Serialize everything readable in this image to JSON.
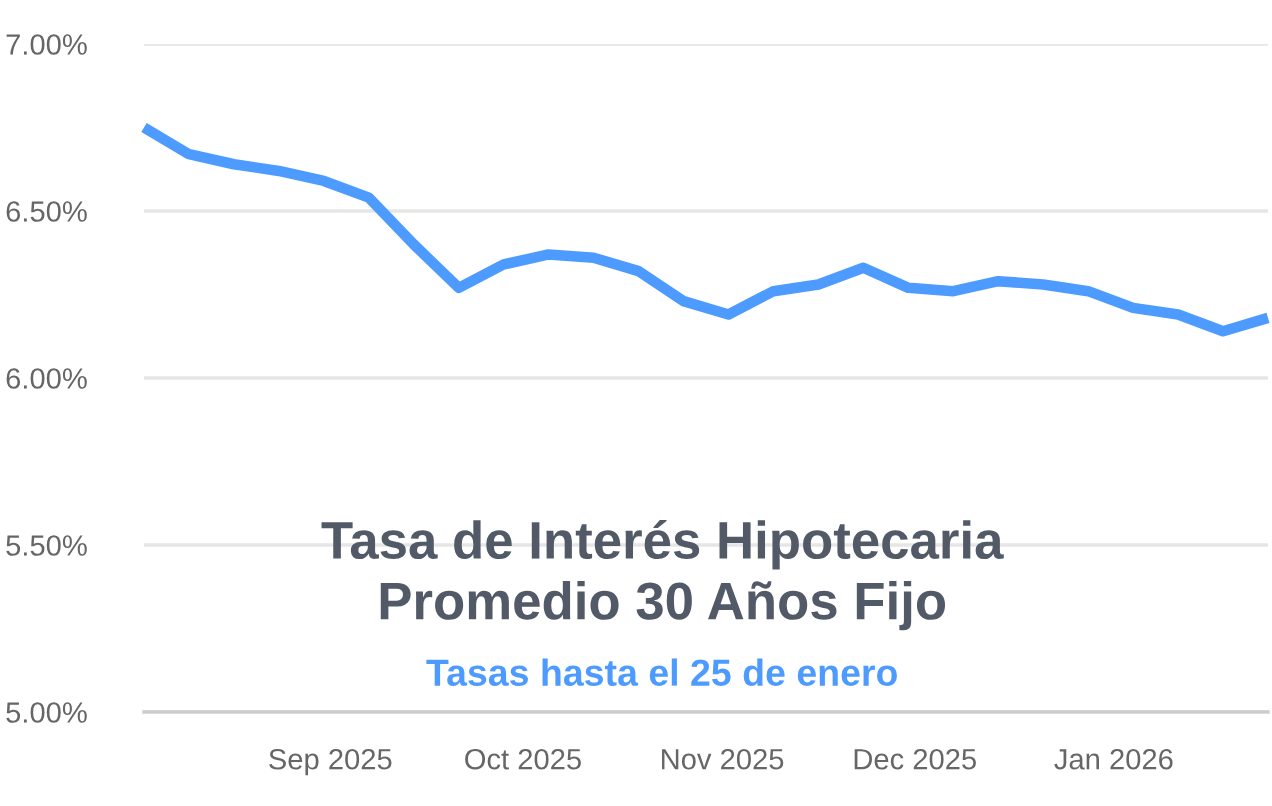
{
  "chart_data": {
    "type": "line",
    "title": "Tasa de Interés Hipotecaria\nPromedio 30 Años Fijo",
    "subtitle": "Tasas hasta el 25 de enero",
    "x": [
      "2025-08-03",
      "2025-08-10",
      "2025-08-17",
      "2025-08-24",
      "2025-08-31",
      "2025-09-07",
      "2025-09-14",
      "2025-09-21",
      "2025-09-28",
      "2025-10-05",
      "2025-10-12",
      "2025-10-19",
      "2025-10-26",
      "2025-11-02",
      "2025-11-09",
      "2025-11-16",
      "2025-11-23",
      "2025-11-30",
      "2025-12-07",
      "2025-12-14",
      "2025-12-21",
      "2025-12-28",
      "2026-01-04",
      "2026-01-11",
      "2026-01-18",
      "2026-01-25"
    ],
    "series": [
      {
        "color": "#4d9bff",
        "values": [
          6.75,
          6.67,
          6.64,
          6.62,
          6.59,
          6.54,
          6.4,
          6.27,
          6.34,
          6.37,
          6.36,
          6.32,
          6.23,
          6.19,
          6.26,
          6.28,
          6.33,
          6.27,
          6.26,
          6.29,
          6.28,
          6.26,
          6.21,
          6.19,
          6.14,
          6.18
        ]
      }
    ],
    "xlim": [
      "2025-08-03",
      "2026-01-25"
    ],
    "xticks": [
      {
        "value": "2025-09-01",
        "label": "Sep 2025"
      },
      {
        "value": "2025-10-01",
        "label": "Oct 2025"
      },
      {
        "value": "2025-11-01",
        "label": "Nov 2025"
      },
      {
        "value": "2025-12-01",
        "label": "Dec 2025"
      },
      {
        "value": "2026-01-01",
        "label": "Jan 2026"
      }
    ],
    "ylim": [
      5,
      7
    ],
    "yticks": [
      {
        "value": 5,
        "label": "5.00%"
      },
      {
        "value": 5.5,
        "label": "5.50%"
      },
      {
        "value": 6,
        "label": "6.00%"
      },
      {
        "value": 6.5,
        "label": "6.50%"
      },
      {
        "value": 7,
        "label": "7.00%"
      }
    ],
    "grid": "y",
    "line_style": "solid"
  }
}
